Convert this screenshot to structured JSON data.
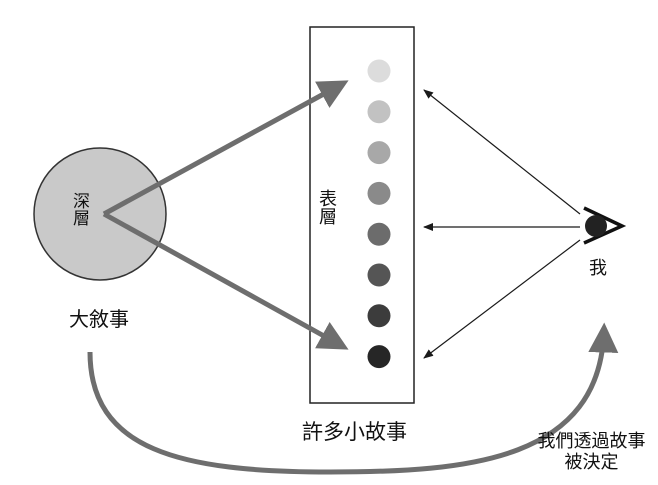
{
  "labels": {
    "deep": "深層",
    "surface": "表層",
    "big_story": "大敘事",
    "many_small_stories": "許多小故事",
    "me": "我",
    "decided_line1": "我們透過故事",
    "decided_line2": "被決定"
  },
  "colors": {
    "circle_fill": "#c9c9c9",
    "arrow_thick": "#6e6e6e",
    "arrow_thin": "#1a1a1a",
    "dots": [
      "#dcdcdc",
      "#c2c2c2",
      "#a8a8a8",
      "#8a8a8a",
      "#6c6c6c",
      "#555555",
      "#3c3c3c",
      "#262626"
    ]
  }
}
